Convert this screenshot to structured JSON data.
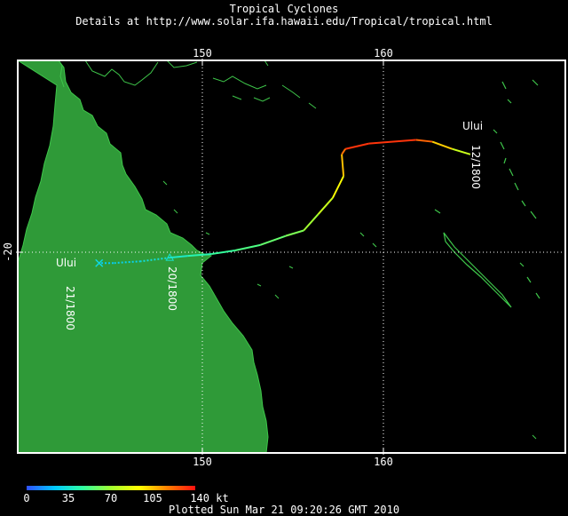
{
  "header": {
    "title": "Tropical Cyclones",
    "subtitle": "Details at http://www.solar.ifa.hawaii.edu/Tropical/tropical.html"
  },
  "axes": {
    "lon_ticks_top": [
      "150",
      "160"
    ],
    "lon_ticks_bottom": [
      "150",
      "160"
    ],
    "lat_tick": "-20"
  },
  "storm": {
    "name_start": "Ului",
    "name_end": "Ului",
    "date_start": "12/1800",
    "date_mid": "20/1800",
    "date_end": "21/1800",
    "track": [
      {
        "lon": 164.8,
        "lat": -14.6,
        "kt": 70
      },
      {
        "lon": 163.8,
        "lat": -14.3,
        "kt": 90
      },
      {
        "lon": 162.7,
        "lat": -13.9,
        "kt": 115
      },
      {
        "lon": 161.8,
        "lat": -13.8,
        "kt": 130
      },
      {
        "lon": 159.2,
        "lat": -14.0,
        "kt": 135
      },
      {
        "lon": 157.9,
        "lat": -14.3,
        "kt": 130
      },
      {
        "lon": 157.7,
        "lat": -14.6,
        "kt": 110
      },
      {
        "lon": 157.8,
        "lat": -15.8,
        "kt": 100
      },
      {
        "lon": 157.2,
        "lat": -17.0,
        "kt": 85
      },
      {
        "lon": 156.4,
        "lat": -17.9,
        "kt": 75
      },
      {
        "lon": 155.6,
        "lat": -18.8,
        "kt": 65
      },
      {
        "lon": 154.6,
        "lat": -19.1,
        "kt": 60
      },
      {
        "lon": 153.2,
        "lat": -19.6,
        "kt": 55
      },
      {
        "lon": 151.8,
        "lat": -19.9,
        "kt": 50
      },
      {
        "lon": 150.5,
        "lat": -20.1,
        "kt": 45
      },
      {
        "lon": 149.2,
        "lat": -20.2,
        "kt": 40
      },
      {
        "lon": 148.2,
        "lat": -20.3,
        "kt": 35
      },
      {
        "lon": 146.6,
        "lat": -20.5,
        "kt": 30
      },
      {
        "lon": 145.1,
        "lat": -20.6,
        "kt": 25
      },
      {
        "lon": 144.3,
        "lat": -20.6,
        "kt": 25
      }
    ]
  },
  "scale": {
    "labels": [
      "0",
      "35",
      "70",
      "105",
      "140 kt"
    ],
    "colors": [
      "#3050ff",
      "#00c8ff",
      "#30ffa0",
      "#a0ff30",
      "#ffff00",
      "#ff8000",
      "#ff1010"
    ]
  },
  "footer": {
    "plotted": "Plotted Sun Mar 21 09:20:26 GMT 2010"
  },
  "colors": {
    "land": "#2f9a38",
    "coast": "#3ec64a",
    "frame": "#ffffff"
  }
}
